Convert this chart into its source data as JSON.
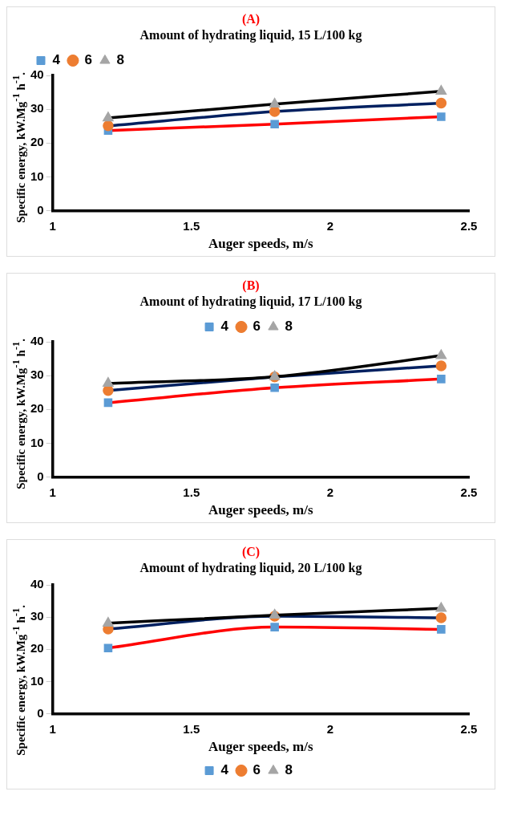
{
  "chart_data": [
    {
      "type": "line",
      "title": "(A)",
      "subtitle": "Amount of hydrating liquid, 15 L/100 kg",
      "xlabel": "Auger speeds, m/s",
      "ylabel": "Specific energy, kW.Mg$^{-1}$ h$^{-1}$.",
      "x": [
        1.2,
        1.8,
        2.4
      ],
      "xlim": [
        1,
        2.5
      ],
      "xticks": [
        1,
        1.5,
        2,
        2.5
      ],
      "ylim": [
        0,
        40
      ],
      "yticks": [
        0,
        10,
        20,
        30,
        40
      ],
      "grid": false,
      "legend": "top left",
      "line_style": "solid",
      "series": [
        {
          "name": "4",
          "color": "#ff0000",
          "colors": [
            "#5b9bd5",
            "#5b9bd5",
            "#5b9bd5"
          ],
          "marker": "square",
          "values": [
            23.7,
            25.6,
            27.8
          ]
        },
        {
          "name": "6",
          "color": "#002060",
          "colors": [
            "#ed7d31",
            "#ed7d31",
            "#ed7d31"
          ],
          "marker": "circle",
          "values": [
            25.1,
            29.3,
            31.8
          ]
        },
        {
          "name": "8",
          "color": "#000000",
          "colors": [
            "#a5a5a5",
            "#a5a5a5",
            "#a5a5a5"
          ],
          "marker": "triangle",
          "values": [
            27.4,
            31.5,
            35.3
          ]
        }
      ]
    },
    {
      "type": "line",
      "title": "(B)",
      "subtitle": "Amount of hydrating liquid, 17 L/100 kg",
      "xlabel": "Auger speeds, m/s",
      "ylabel": "Specific energy, kW.Mg$^{-1}$ h$^{-1}$.",
      "x": [
        1.2,
        1.8,
        2.4
      ],
      "xlim": [
        1,
        2.5
      ],
      "xticks": [
        1,
        1.5,
        2,
        2.5
      ],
      "ylim": [
        0,
        40
      ],
      "yticks": [
        0,
        10,
        20,
        30,
        40
      ],
      "grid": false,
      "legend": "top",
      "line_style": "solid",
      "series": [
        {
          "name": "4",
          "color": "#ff0000",
          "colors": [
            "#5b9bd5",
            "#5b9bd5",
            "#5b9bd5"
          ],
          "marker": "square",
          "values": [
            22,
            26.4,
            29
          ]
        },
        {
          "name": "6",
          "color": "#002060",
          "colors": [
            "#ed7d31",
            "#ed7d31",
            "#ed7d31"
          ],
          "marker": "circle",
          "values": [
            25.6,
            29.6,
            32.9
          ]
        },
        {
          "name": "8",
          "color": "#000000",
          "colors": [
            "#a5a5a5",
            "#a5a5a5",
            "#a5a5a5"
          ],
          "marker": "triangle",
          "values": [
            27.7,
            29.7,
            35.9
          ]
        }
      ]
    },
    {
      "type": "line",
      "title": "(C)",
      "subtitle": "Amount of hydrating liquid, 20 L/100 kg",
      "xlabel": "Auger speeds, m/s",
      "ylabel": "Specific energy, kW.Mg$^{-1}$ h$^{-1}$.",
      "x": [
        1.2,
        1.8,
        2.4
      ],
      "xlim": [
        1,
        2.5
      ],
      "xticks": [
        1,
        1.5,
        2,
        2.5
      ],
      "ylim": [
        0,
        40
      ],
      "yticks": [
        0,
        10,
        20,
        30,
        40
      ],
      "grid": false,
      "legend": "bottom",
      "line_style": "solid",
      "series": [
        {
          "name": "4",
          "color": "#ff0000",
          "colors": [
            "#5b9bd5",
            "#5b9bd5",
            "#5b9bd5"
          ],
          "marker": "square",
          "values": [
            20.4,
            26.9,
            26.2
          ]
        },
        {
          "name": "6",
          "color": "#002060",
          "colors": [
            "#ed7d31",
            "#ed7d31",
            "#ed7d31"
          ],
          "marker": "circle",
          "values": [
            26.3,
            30.3,
            29.8
          ]
        },
        {
          "name": "8",
          "color": "#000000",
          "colors": [
            "#a5a5a5",
            "#a5a5a5",
            "#a5a5a5"
          ],
          "marker": "triangle",
          "values": [
            28.1,
            30.6,
            32.7
          ]
        }
      ]
    }
  ]
}
